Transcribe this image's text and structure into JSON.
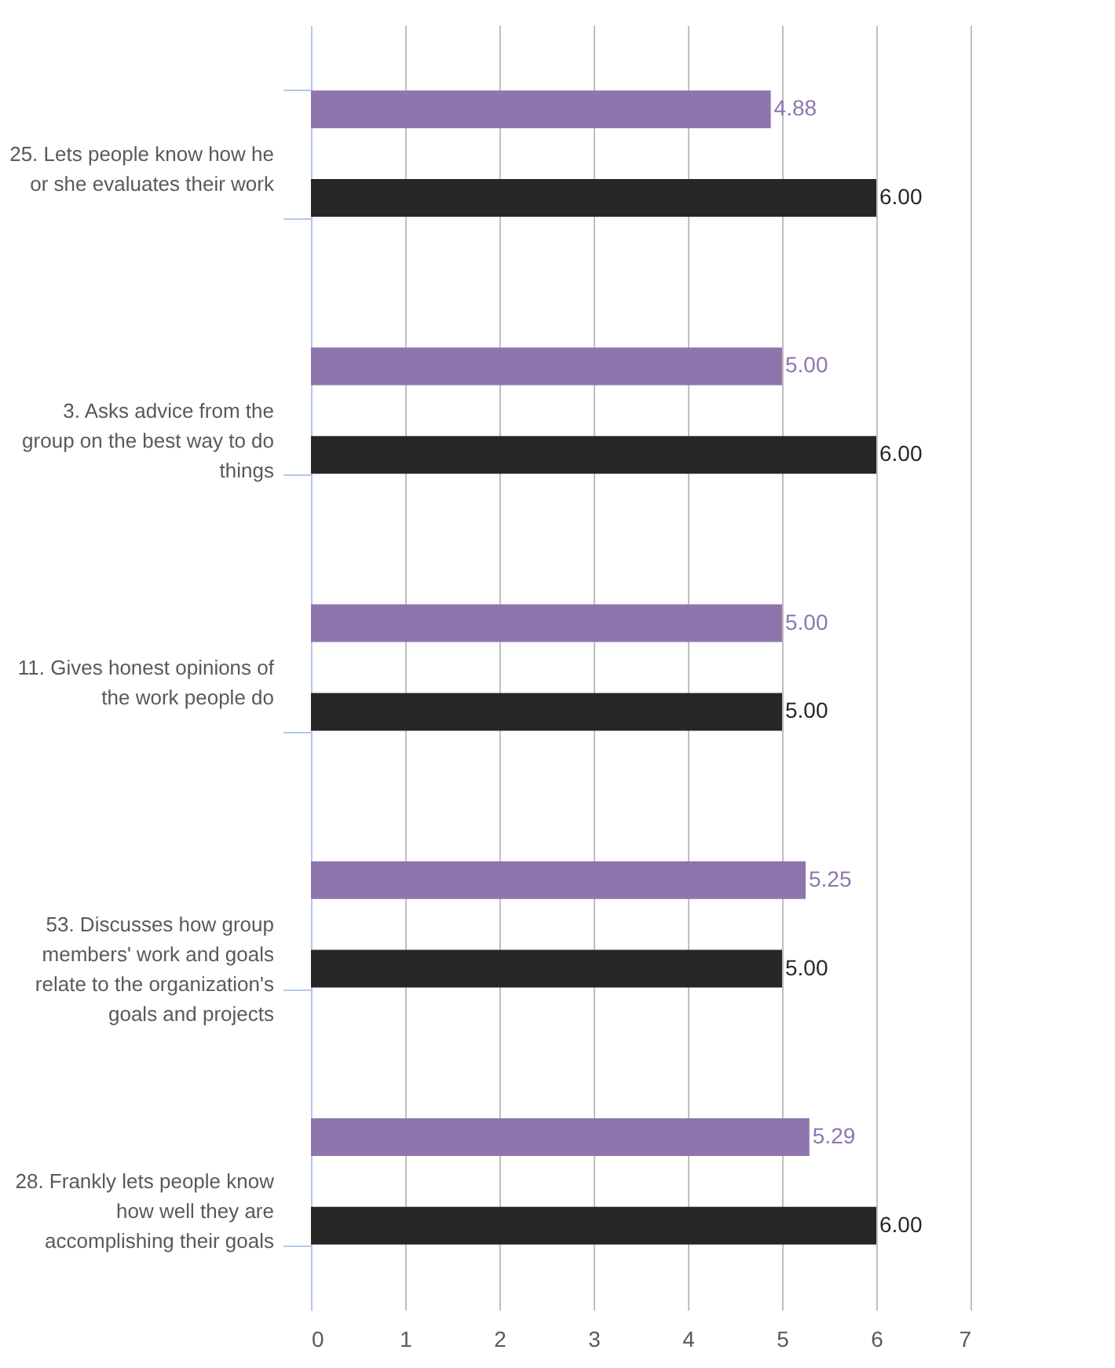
{
  "chart_data": {
    "type": "bar",
    "orientation": "horizontal",
    "categories": [
      "25. Lets people know how he or she evaluates their work",
      "3. Asks advice from the group on the best way to do things",
      "11. Gives honest opinions of the work people do",
      "53. Discusses how group members' work and goals relate to the organization's goals and projects",
      "28. Frankly lets people know how well they are accomplishing their goals"
    ],
    "series": [
      {
        "color": "#8e75ae",
        "values": [
          4.88,
          5.0,
          5.0,
          5.25,
          5.29
        ],
        "value_labels": [
          "4.88",
          "5.00",
          "5.00",
          "5.25",
          "5.29"
        ]
      },
      {
        "color": "#262626",
        "values": [
          6.0,
          6.0,
          5.0,
          5.0,
          6.0
        ],
        "value_labels": [
          "6.00",
          "6.00",
          "5.00",
          "5.00",
          "6.00"
        ]
      }
    ],
    "xlim": [
      0,
      7
    ],
    "xticks": [
      0,
      1,
      2,
      3,
      4,
      5,
      6,
      7
    ],
    "grid": "x",
    "legend": false
  }
}
